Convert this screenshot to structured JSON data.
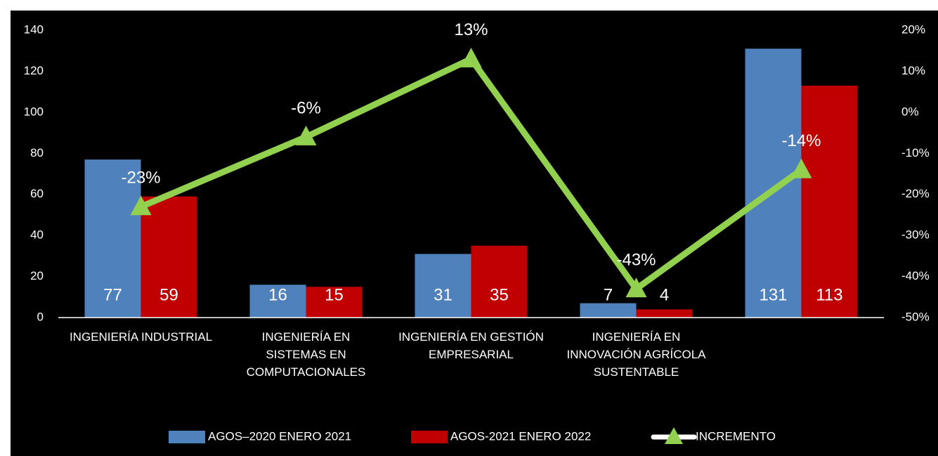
{
  "chart_data": {
    "type": "bar",
    "categories": [
      "INGENIERÍA INDUSTRIAL",
      "INGENIERÍA EN SISTEMAS EN COMPUTACIONALES",
      "INGENIERÍA EN GESTIÓN EMPRESARIAL",
      "INGENIERÍA EN INNOVACIÓN AGRÍCOLA SUSTENTABLE",
      null
    ],
    "series": [
      {
        "name": "AGOS–2020 ENERO 2021",
        "color": "#4f81bd",
        "values": [
          77,
          16,
          31,
          7,
          131
        ]
      },
      {
        "name": "AGOS-2021 ENERO 2022",
        "color": "#c00000",
        "values": [
          59,
          15,
          35,
          4,
          113
        ]
      },
      {
        "name": "INCREMENTO",
        "color": "#92d050",
        "type": "line",
        "axis": "y2",
        "values": [
          -23,
          -6,
          13,
          -43,
          -14
        ],
        "value_labels": [
          "-23%",
          "-6%",
          "13%",
          "-43%",
          "-14%"
        ]
      }
    ],
    "ylim": [
      0,
      140
    ],
    "yticks": [
      0,
      20,
      40,
      60,
      80,
      100,
      120,
      140
    ],
    "y2lim": [
      -50,
      20
    ],
    "y2ticks": [
      {
        "value": -50,
        "label": "-50%"
      },
      {
        "value": -40,
        "label": "-40%"
      },
      {
        "value": -30,
        "label": "-30%"
      },
      {
        "value": -20,
        "label": "-20%"
      },
      {
        "value": -10,
        "label": "-10%"
      },
      {
        "value": 0,
        "label": "0%"
      },
      {
        "value": 10,
        "label": "10%"
      },
      {
        "value": 20,
        "label": "20%"
      }
    ],
    "grid": false,
    "legend": "bottom"
  }
}
